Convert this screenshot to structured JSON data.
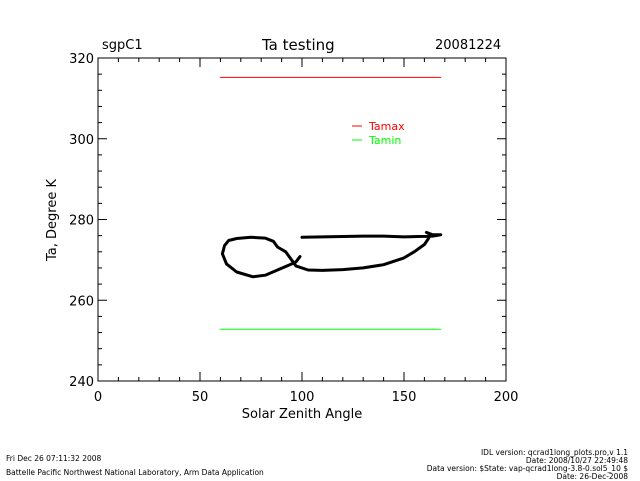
{
  "header": {
    "site": "sgpC1",
    "title": "Ta testing",
    "date": "20081224"
  },
  "footer": {
    "run_time": "Fri Dec 26 07:11:32 2008",
    "org": "Battelle Pacific Northwest National Laboratory, Arm Data Application",
    "idl_version": "IDL version: qcrad1long_plots.pro,v 1.1",
    "idl_date": "Date: 2008/10/27 22:49:48",
    "data_version": "Data version: $State: vap-qcrad1long-3.8-0.sol5_10 $",
    "data_date": "Date: 26-Dec-2008"
  },
  "chart_data": {
    "type": "line",
    "title": "Ta testing",
    "xlabel": "Solar Zenith Angle",
    "ylabel": "Ta, Degree K",
    "xlim": [
      0,
      200
    ],
    "ylim": [
      240,
      320
    ],
    "xticks": [
      0,
      50,
      100,
      150,
      200
    ],
    "yticks": [
      240,
      260,
      280,
      300,
      320
    ],
    "grid": false,
    "legend_position": "top-right",
    "series": [
      {
        "name": "Tamax",
        "color": "#ff0000",
        "x": [
          60,
          168
        ],
        "y": [
          315.2,
          315.2
        ]
      },
      {
        "name": "Tamin",
        "color": "#00ff00",
        "x": [
          60,
          168
        ],
        "y": [
          252.8,
          252.8
        ]
      },
      {
        "name": "",
        "color": "#000000",
        "x": [
          99,
          97,
          94,
          88,
          82,
          76,
          68,
          63,
          61,
          62,
          64,
          68,
          75,
          82,
          86,
          88,
          92,
          97,
          103,
          110,
          120,
          130,
          140,
          150,
          155,
          160,
          162,
          163,
          161,
          164,
          168,
          164,
          150,
          140,
          130,
          120,
          110,
          100
        ],
        "y": [
          270.8,
          269.5,
          268.8,
          267.5,
          266.2,
          265.8,
          267.0,
          269.0,
          271.5,
          273.5,
          274.8,
          275.3,
          275.6,
          275.4,
          274.6,
          273.2,
          272.0,
          268.5,
          267.5,
          267.4,
          267.6,
          268.0,
          268.8,
          270.5,
          272.0,
          273.8,
          275.3,
          276.3,
          276.8,
          276.2,
          276.2,
          275.9,
          275.7,
          275.9,
          275.9,
          275.8,
          275.7,
          275.6
        ]
      }
    ]
  }
}
